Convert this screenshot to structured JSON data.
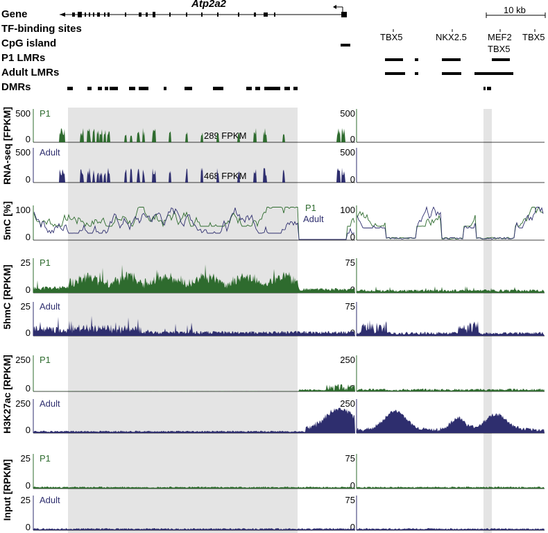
{
  "header": {
    "gene_name": "Atp2a2",
    "rows": [
      "Gene",
      "TF-binding sites",
      "CpG island",
      "P1 LMRs",
      "Adult LMRs",
      "DMRs"
    ],
    "scale_label": "10 kb",
    "tf_sites": [
      "TBX5",
      "NKX2.5",
      "MEF2",
      "TBX5",
      "TBX5"
    ]
  },
  "colors": {
    "p1": "#2e6b2e",
    "adult": "#2e2e6e",
    "shade": "#e4e4e4"
  },
  "tracks": [
    {
      "id": "rnaseq-p1",
      "group": "RNA-seq [FPKM]",
      "sample": "P1",
      "left_max": "500",
      "left_min": "0",
      "right_max": "500",
      "right_min": "0",
      "annotation": "289 FPKM",
      "seed": 3,
      "kind": "exon"
    },
    {
      "id": "rnaseq-adult",
      "group": "RNA-seq [FPKM]",
      "sample": "Adult",
      "left_max": "500",
      "left_min": "0",
      "right_max": "500",
      "right_min": "0",
      "annotation": "468 FPKM",
      "seed": 5,
      "kind": "exon"
    },
    {
      "id": "5mc",
      "group": "5mC [%]",
      "sample": "",
      "left_max": "100",
      "left_min": "0",
      "right_max": "100",
      "right_min": "0",
      "legend": [
        "P1",
        "Adult"
      ],
      "seed": 7,
      "kind": "line"
    },
    {
      "id": "5hmc-p1",
      "group": "5hmC [RPKM]",
      "sample": "P1",
      "left_max": "25",
      "left_min": "0",
      "right_max": "75",
      "right_min": "0",
      "seed": 11,
      "kind": "hmc-p1"
    },
    {
      "id": "5hmc-adult",
      "group": "5hmC [RPKM]",
      "sample": "Adult",
      "left_max": "25",
      "left_min": "0",
      "right_max": "75",
      "right_min": "0",
      "seed": 13,
      "kind": "hmc-adult"
    },
    {
      "id": "h3k27ac-p1",
      "group": "H3K27ac [RPKM]",
      "sample": "P1",
      "left_max": "250",
      "left_min": "0",
      "right_max": "250",
      "right_min": "0",
      "seed": 17,
      "kind": "k27-p1"
    },
    {
      "id": "h3k27ac-adult",
      "group": "H3K27ac [RPKM]",
      "sample": "Adult",
      "left_max": "250",
      "left_min": "0",
      "right_max": "250",
      "right_min": "0",
      "seed": 19,
      "kind": "k27-adult"
    },
    {
      "id": "input-p1",
      "group": "Input [RPKM]",
      "sample": "P1",
      "left_max": "25",
      "left_min": "0",
      "right_max": "75",
      "right_min": "0",
      "seed": 23,
      "kind": "input"
    },
    {
      "id": "input-adult",
      "group": "Input [RPKM]",
      "sample": "Adult",
      "left_max": "25",
      "left_min": "0",
      "right_max": "75",
      "right_min": "0",
      "seed": 29,
      "kind": "input"
    }
  ],
  "y_axis_titles": [
    "RNA-seq [FPKM]",
    "5mC [%]",
    "5hmC [RPKM]",
    "H3K27ac [RPKM]",
    "Input [RPKM]"
  ]
}
